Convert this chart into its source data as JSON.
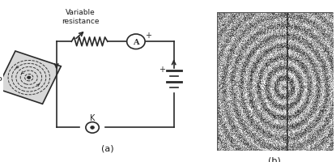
{
  "bg_color": "#ffffff",
  "left_panel_label": "(a)",
  "right_panel_label": "(b)",
  "var_resistance_label": "Variable\nresistance",
  "ammeter_label": "A",
  "key_label": "K",
  "P_label": "P",
  "plus_battery": "+",
  "plus_ammeter": "+",
  "circuit_color": "#2a2a2a",
  "text_color": "#1a1a1a"
}
